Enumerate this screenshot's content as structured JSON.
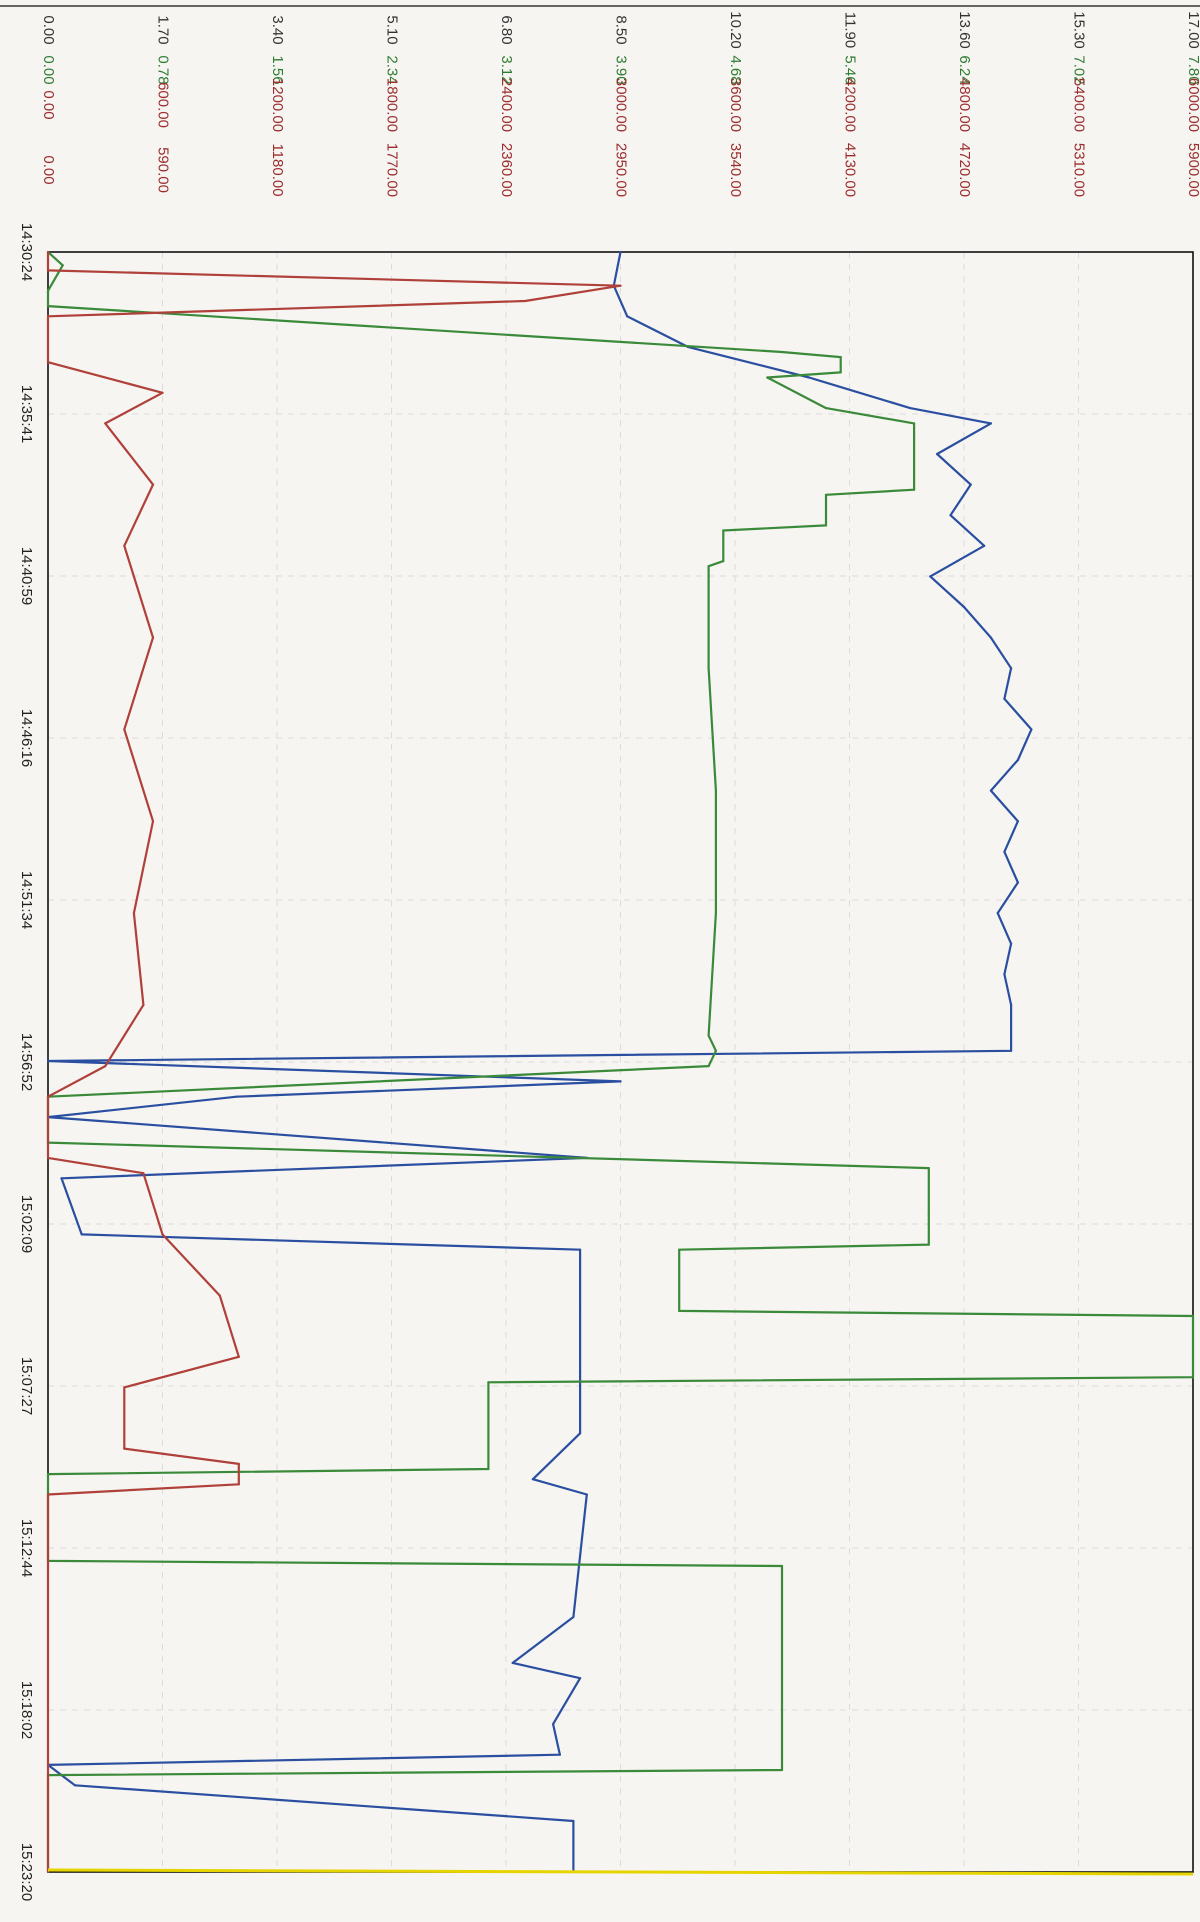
{
  "chart_data": {
    "type": "line",
    "orientation": "rotated-90",
    "title": "",
    "x": {
      "ticks": [
        "14:30:24",
        "14:35:41",
        "14:40:59",
        "14:46:16",
        "14:51:34",
        "14:56:52",
        "15:02:09",
        "15:07:27",
        "15:12:44",
        "15:18:02",
        "15:23:20"
      ],
      "range": [
        "14:30:24",
        "15:23:20"
      ]
    },
    "y_axes": [
      {
        "color": "#333333",
        "ticks": [
          "0.00",
          "1.70",
          "3.40",
          "5.10",
          "6.80",
          "8.50",
          "10.20",
          "11.90",
          "13.60",
          "15.30",
          "17.00"
        ]
      },
      {
        "color": "#2f7d32",
        "ticks": [
          "0.00",
          "0.78",
          "1.56",
          "2.34",
          "3.12",
          "3.90",
          "4.68",
          "5.46",
          "6.24",
          "7.02",
          "7.80"
        ]
      },
      {
        "color": "#9b2d2d",
        "ticks": [
          "0.00",
          "600.00",
          "1200.00",
          "1800.00",
          "2400.00",
          "3000.00",
          "3600.00",
          "4200.00",
          "4800.00",
          "5400.00",
          "6000.00"
        ]
      },
      {
        "color": "#9b2d2d",
        "ticks": [
          "0.00",
          "590.00",
          "1180.00",
          "1770.00",
          "2360.00",
          "2950.00",
          "3540.00",
          "4130.00",
          "4720.00",
          "5310.00",
          "5900.00"
        ]
      }
    ],
    "series": [
      {
        "color": "#2b4fa0",
        "points": [
          [
            "14:30:24",
            8.5
          ],
          [
            "14:31:30",
            8.4
          ],
          [
            "14:32:30",
            8.6
          ],
          [
            "14:33:30",
            9.5
          ],
          [
            "14:34:30",
            11.3
          ],
          [
            "14:35:30",
            12.8
          ],
          [
            "14:36:00",
            14.0
          ],
          [
            "14:37:00",
            13.2
          ],
          [
            "14:38:00",
            13.7
          ],
          [
            "14:39:00",
            13.4
          ],
          [
            "14:40:00",
            13.9
          ],
          [
            "14:41:00",
            13.1
          ],
          [
            "14:42:00",
            13.6
          ],
          [
            "14:43:00",
            14.0
          ],
          [
            "14:44:00",
            14.3
          ],
          [
            "14:45:00",
            14.2
          ],
          [
            "14:46:00",
            14.6
          ],
          [
            "14:47:00",
            14.4
          ],
          [
            "14:48:00",
            14.0
          ],
          [
            "14:49:00",
            14.4
          ],
          [
            "14:50:00",
            14.2
          ],
          [
            "14:51:00",
            14.4
          ],
          [
            "14:52:00",
            14.1
          ],
          [
            "14:53:00",
            14.3
          ],
          [
            "14:54:00",
            14.2
          ],
          [
            "14:55:00",
            14.3
          ],
          [
            "14:56:30",
            14.3
          ],
          [
            "14:56:50",
            0.0
          ],
          [
            "14:57:30",
            8.5
          ],
          [
            "14:58:00",
            2.8
          ],
          [
            "14:58:40",
            0.0
          ],
          [
            "15:00:00",
            8.0
          ],
          [
            "15:00:40",
            0.2
          ],
          [
            "15:02:30",
            0.5
          ],
          [
            "15:03:00",
            7.9
          ],
          [
            "15:05:00",
            7.9
          ],
          [
            "15:07:00",
            7.9
          ],
          [
            "15:09:00",
            7.9
          ],
          [
            "15:10:30",
            7.2
          ],
          [
            "15:11:00",
            8.0
          ],
          [
            "15:13:00",
            7.9
          ],
          [
            "15:15:00",
            7.8
          ],
          [
            "15:16:30",
            6.9
          ],
          [
            "15:17:00",
            7.9
          ],
          [
            "15:18:30",
            7.5
          ],
          [
            "15:19:30",
            7.6
          ],
          [
            "15:19:50",
            0.0
          ],
          [
            "15:20:30",
            0.4
          ],
          [
            "15:21:40",
            7.8
          ],
          [
            "15:23:20",
            7.8
          ]
        ]
      },
      {
        "color": "#3a8a3a",
        "points": [
          [
            "14:30:24",
            0.0
          ],
          [
            "14:30:50",
            0.1
          ],
          [
            "14:31:40",
            0.0
          ],
          [
            "14:32:10",
            0.0
          ],
          [
            "14:33:40",
            5.0
          ],
          [
            "14:33:50",
            5.4
          ],
          [
            "14:34:20",
            5.4
          ],
          [
            "14:34:30",
            4.9
          ],
          [
            "14:35:30",
            5.3
          ],
          [
            "14:36:00",
            5.9
          ],
          [
            "14:36:30",
            5.9
          ],
          [
            "14:38:10",
            5.9
          ],
          [
            "14:38:20",
            5.3
          ],
          [
            "14:39:20",
            5.3
          ],
          [
            "14:39:30",
            4.6
          ],
          [
            "14:40:30",
            4.6
          ],
          [
            "14:40:40",
            4.5
          ],
          [
            "14:44:00",
            4.5
          ],
          [
            "14:48:00",
            4.55
          ],
          [
            "14:52:00",
            4.55
          ],
          [
            "14:56:00",
            4.5
          ],
          [
            "14:56:30",
            4.55
          ],
          [
            "14:57:00",
            4.5
          ],
          [
            "14:58:00",
            0.0
          ],
          [
            "14:59:30",
            0.0
          ],
          [
            "15:00:20",
            6.0
          ],
          [
            "15:01:50",
            6.0
          ],
          [
            "15:02:10",
            6.0
          ],
          [
            "15:02:50",
            6.0
          ],
          [
            "15:03:00",
            4.3
          ],
          [
            "15:05:00",
            4.3
          ],
          [
            "15:05:10",
            7.8
          ],
          [
            "15:07:10",
            7.8
          ],
          [
            "15:07:20",
            3.0
          ],
          [
            "15:10:10",
            3.0
          ],
          [
            "15:10:20",
            0.0
          ],
          [
            "15:12:00",
            0.0
          ],
          [
            "15:13:10",
            0.0
          ],
          [
            "15:13:20",
            5.0
          ],
          [
            "15:20:00",
            5.0
          ],
          [
            "15:20:10",
            0.0
          ],
          [
            "15:23:20",
            0.0
          ]
        ]
      },
      {
        "color": "#b0403a",
        "points": [
          [
            "14:30:24",
            0.0
          ],
          [
            "14:31:00",
            0.0
          ],
          [
            "14:31:30",
            3000.0
          ],
          [
            "14:32:00",
            2500.0
          ],
          [
            "14:32:30",
            0.0
          ],
          [
            "14:34:00",
            0.0
          ],
          [
            "14:35:00",
            600.0
          ],
          [
            "14:36:00",
            300.0
          ],
          [
            "14:38:00",
            550.0
          ],
          [
            "14:40:00",
            400.0
          ],
          [
            "14:43:00",
            550.0
          ],
          [
            "14:46:00",
            400.0
          ],
          [
            "14:49:00",
            550.0
          ],
          [
            "14:52:00",
            450.0
          ],
          [
            "14:55:00",
            500.0
          ],
          [
            "14:57:00",
            300.0
          ],
          [
            "14:58:00",
            0.0
          ],
          [
            "15:00:00",
            0.0
          ],
          [
            "15:00:30",
            500.0
          ],
          [
            "15:02:30",
            600.0
          ],
          [
            "15:04:30",
            900.0
          ],
          [
            "15:06:30",
            1000.0
          ],
          [
            "15:07:30",
            400.0
          ],
          [
            "15:09:30",
            400.0
          ],
          [
            "15:10:00",
            1000.0
          ],
          [
            "15:10:40",
            1000.0
          ],
          [
            "15:11:00",
            0.0
          ],
          [
            "15:23:20",
            0.0
          ]
        ]
      }
    ],
    "baseline": {
      "color": "#e6d400"
    }
  }
}
